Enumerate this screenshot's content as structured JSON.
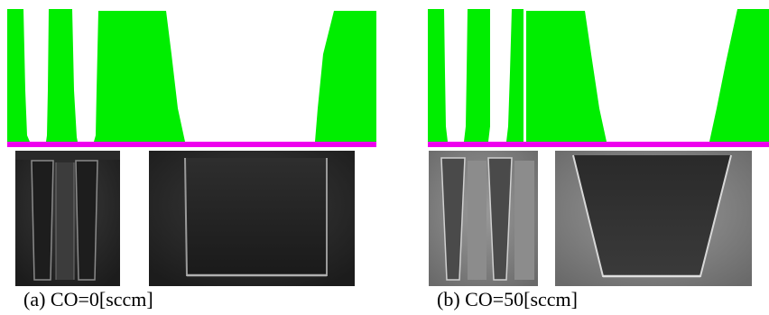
{
  "figure": {
    "panels": [
      {
        "id": "a",
        "caption": "(a) CO=0[sccm]",
        "simulation_colors": {
          "material": "#00ee00",
          "substrate": "#ee00ee"
        },
        "sem_views": [
          "narrow trenches",
          "wide trench"
        ]
      },
      {
        "id": "b",
        "caption": "(b) CO=50[sccm]",
        "simulation_colors": {
          "material": "#00ee00",
          "substrate": "#ee00ee"
        },
        "sem_views": [
          "narrow trenches",
          "wide trench"
        ]
      }
    ]
  }
}
